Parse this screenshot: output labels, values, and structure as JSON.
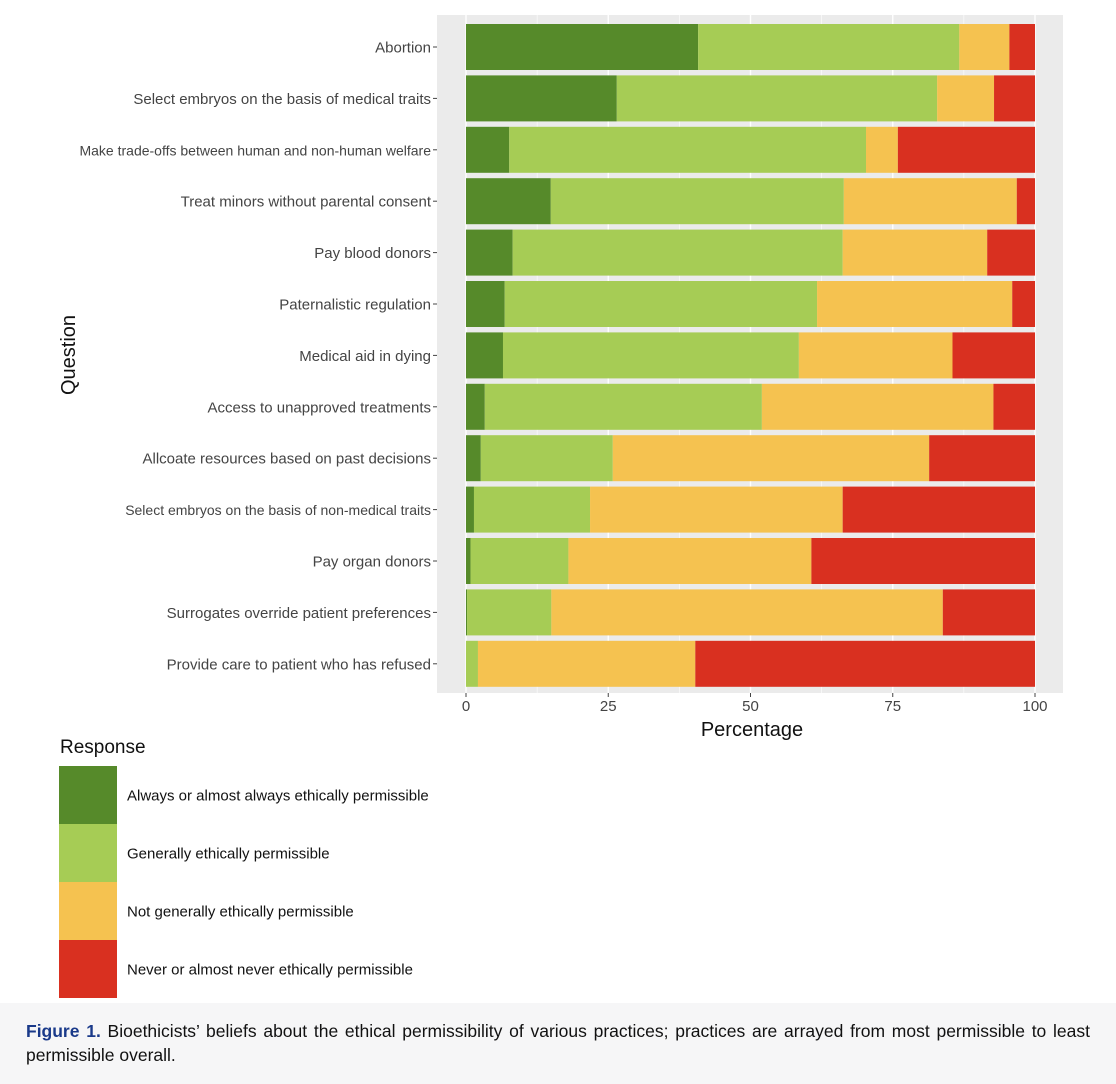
{
  "chart_data": {
    "type": "bar",
    "orientation": "horizontal",
    "stacked": true,
    "xlabel": "Percentage",
    "ylabel": "Question",
    "xlim": [
      0,
      100
    ],
    "xticks": [
      "0",
      "25",
      "50",
      "75",
      "100"
    ],
    "categories": [
      "Abortion",
      "Select embryos on the basis of medical traits",
      "Make trade-offs between human and non-human welfare",
      "Treat minors without parental consent",
      "Pay blood donors",
      "Paternalistic regulation",
      "Medical aid in dying",
      "Access to unapproved treatments",
      "Allcoate resources based on past decisions",
      "Select embryos on the basis of non-medical traits",
      "Pay organ donors",
      "Surrogates override patient preferences",
      "Provide care to patient who has refused"
    ],
    "series": [
      {
        "name": "Always or almost always ethically permissible",
        "color": "#568a2a",
        "values": [
          40.8,
          26.5,
          7.6,
          14.9,
          8.2,
          6.8,
          6.5,
          3.3,
          2.6,
          1.4,
          0.8,
          0.2,
          0.0
        ]
      },
      {
        "name": "Generally ethically permissible",
        "color": "#a6cc55",
        "values": [
          45.9,
          56.3,
          62.7,
          51.5,
          58.0,
          54.9,
          52.0,
          48.7,
          23.2,
          20.4,
          17.2,
          14.8,
          2.1
        ]
      },
      {
        "name": "Not generally ethically permissible",
        "color": "#f5c250",
        "values": [
          8.8,
          10.0,
          5.6,
          30.4,
          25.4,
          34.3,
          27.0,
          40.7,
          55.6,
          44.4,
          42.7,
          68.8,
          38.2
        ]
      },
      {
        "name": "Never or almost never ethically permissible",
        "color": "#d93020",
        "values": [
          4.5,
          7.2,
          24.1,
          3.2,
          8.4,
          4.0,
          14.5,
          7.3,
          18.6,
          33.8,
          39.3,
          16.2,
          59.7
        ]
      }
    ],
    "legend_title": "Response",
    "legend_position": "bottom-left"
  },
  "caption": {
    "label": "Figure 1.",
    "text": "Bioethicists’ beliefs about the ethical permissibility of various practices; practices are arrayed from most permissible to least permissible overall."
  }
}
